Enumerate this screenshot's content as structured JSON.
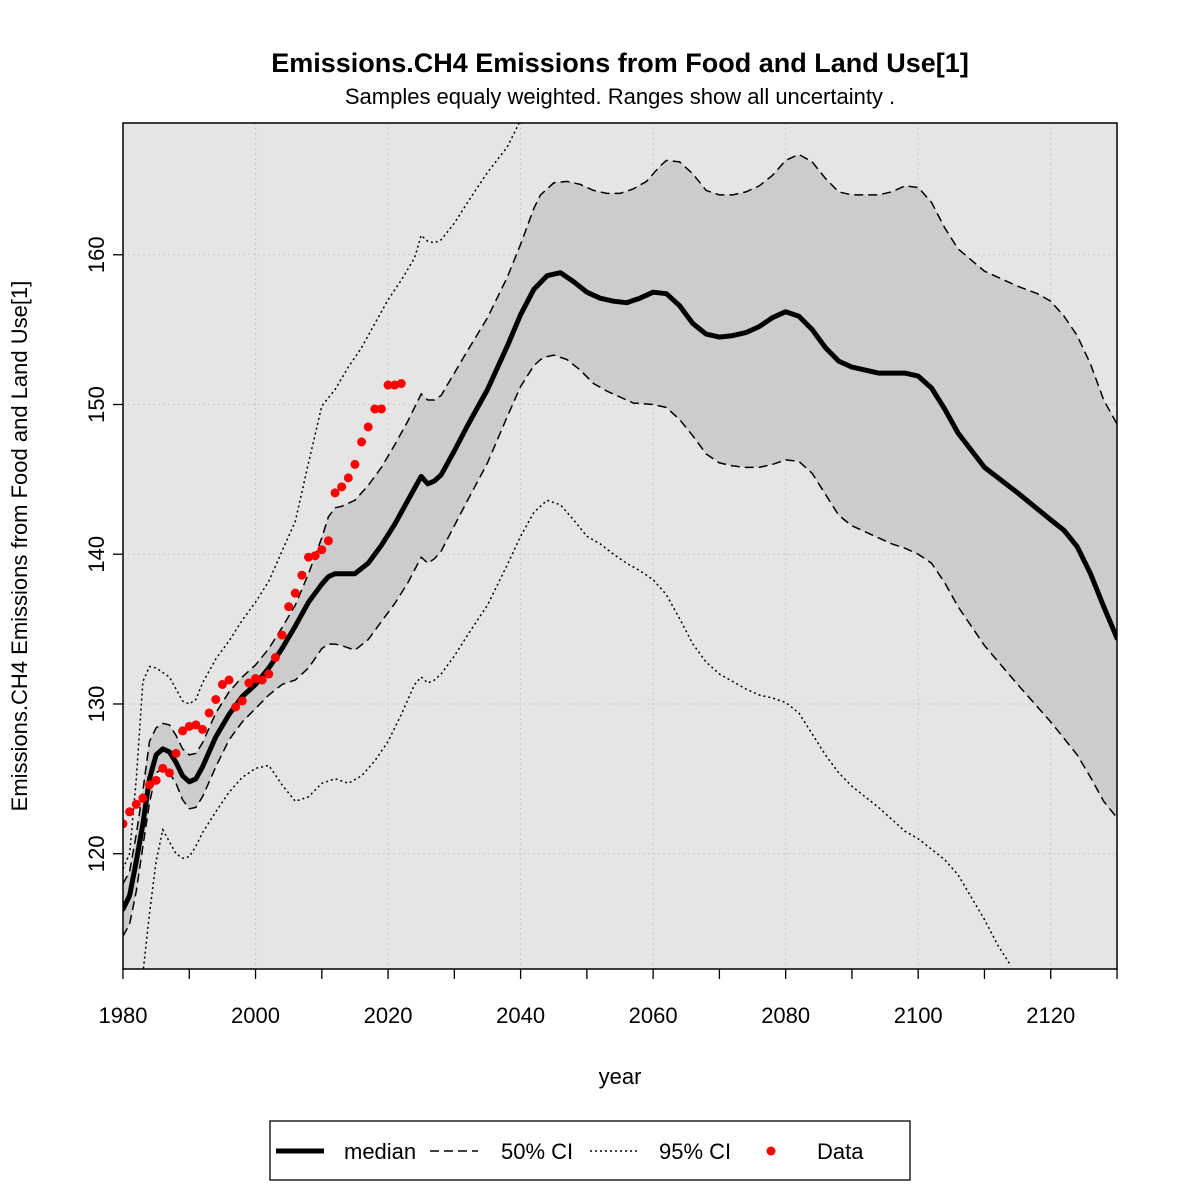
{
  "chart_data": {
    "type": "line",
    "title": "Emissions.CH4 Emissions from Food and Land Use[1]",
    "subtitle": "Samples equaly weighted. Ranges show  all uncertainty .",
    "xlabel": "year",
    "ylabel": "Emissions.CH4 Emissions from Food and Land Use[1]",
    "xlim": [
      1980,
      2130
    ],
    "ylim": [
      112.3,
      168.8
    ],
    "x_ticks": [
      1980,
      2000,
      2020,
      2040,
      2060,
      2080,
      2100,
      2120
    ],
    "y_ticks": [
      120,
      130,
      140,
      150,
      160
    ],
    "grid": true,
    "legend_position": "bottom",
    "legend": [
      {
        "name": "median",
        "style": "solid"
      },
      {
        "name": "50% CI",
        "style": "dashed"
      },
      {
        "name": "95% CI",
        "style": "dotted"
      },
      {
        "name": "Data",
        "style": "points"
      }
    ],
    "colors": {
      "median": "#000000",
      "data": "#ff0000",
      "band95": "#e5e5e5",
      "band50": "#cccccc"
    },
    "median": {
      "x": [
        1980,
        1981,
        1982,
        1983,
        1984,
        1985,
        1986,
        1987,
        1988,
        1989,
        1990,
        1991,
        1992,
        1994,
        1996,
        1998,
        2000,
        2002,
        2004,
        2006,
        2008,
        2010,
        2011,
        2012,
        2013,
        2015,
        2017,
        2019,
        2021,
        2023,
        2025,
        2026,
        2027,
        2028,
        2030,
        2032,
        2035,
        2038,
        2040,
        2042,
        2044,
        2046,
        2048,
        2050,
        2052,
        2054,
        2056,
        2058,
        2060,
        2062,
        2064,
        2066,
        2068,
        2070,
        2072,
        2074,
        2076,
        2078,
        2080,
        2082,
        2084,
        2086,
        2088,
        2090,
        2092,
        2094,
        2096,
        2098,
        2100,
        2102,
        2104,
        2106,
        2110,
        2115,
        2120,
        2122,
        2124,
        2126,
        2128,
        2130
      ],
      "y": [
        116.3,
        117.2,
        119.5,
        122.0,
        125.0,
        126.6,
        127.0,
        126.8,
        126.1,
        125.2,
        124.8,
        125.0,
        125.8,
        127.8,
        129.3,
        130.5,
        131.3,
        132.4,
        133.7,
        135.2,
        136.8,
        138.0,
        138.5,
        138.7,
        138.7,
        138.7,
        139.4,
        140.6,
        142.0,
        143.6,
        145.2,
        144.7,
        144.9,
        145.3,
        146.9,
        148.6,
        151.0,
        153.9,
        156.0,
        157.7,
        158.6,
        158.8,
        158.2,
        157.5,
        157.1,
        156.9,
        156.8,
        157.1,
        157.5,
        157.4,
        156.6,
        155.4,
        154.7,
        154.5,
        154.6,
        154.8,
        155.2,
        155.8,
        156.2,
        155.9,
        155.0,
        153.8,
        152.9,
        152.5,
        152.3,
        152.1,
        152.1,
        152.1,
        151.9,
        151.1,
        149.7,
        148.1,
        145.8,
        144.1,
        142.3,
        141.6,
        140.5,
        138.7,
        136.5,
        134.4
      ]
    },
    "ci50_upper": {
      "x": [
        1980,
        1981,
        1982,
        1983,
        1984,
        1985,
        1986,
        1987,
        1988,
        1989,
        1990,
        1991,
        1992,
        1994,
        1996,
        1998,
        2000,
        2002,
        2004,
        2006,
        2008,
        2010,
        2011,
        2012,
        2013,
        2015,
        2017,
        2019,
        2021,
        2023,
        2025,
        2026,
        2027,
        2028,
        2030,
        2032,
        2035,
        2038,
        2040,
        2042,
        2043,
        2045,
        2047,
        2049,
        2051,
        2053,
        2055,
        2057,
        2059,
        2060,
        2061,
        2062,
        2064,
        2066,
        2068,
        2070,
        2072,
        2074,
        2076,
        2078,
        2080,
        2082,
        2084,
        2086,
        2088,
        2090,
        2092,
        2094,
        2096,
        2098,
        2100,
        2102,
        2104,
        2106,
        2110,
        2115,
        2118,
        2120,
        2122,
        2124,
        2126,
        2128,
        2130
      ],
      "y": [
        118.0,
        118.8,
        121.3,
        124.2,
        127.5,
        128.4,
        128.7,
        128.6,
        127.9,
        127.0,
        126.6,
        126.7,
        127.4,
        129.4,
        130.8,
        131.8,
        132.6,
        133.7,
        135.1,
        136.6,
        138.7,
        141.1,
        142.5,
        143.1,
        143.2,
        143.6,
        144.6,
        145.8,
        147.3,
        148.9,
        150.7,
        150.3,
        150.3,
        150.6,
        152.1,
        153.6,
        155.8,
        158.5,
        160.7,
        163.1,
        164.0,
        164.8,
        164.9,
        164.7,
        164.3,
        164.1,
        164.1,
        164.4,
        164.9,
        165.4,
        165.9,
        166.3,
        166.2,
        165.4,
        164.3,
        164.0,
        164.0,
        164.2,
        164.6,
        165.3,
        166.3,
        166.7,
        166.2,
        165.1,
        164.2,
        164.0,
        164.0,
        164.0,
        164.2,
        164.6,
        164.5,
        163.5,
        161.8,
        160.4,
        158.9,
        157.9,
        157.4,
        156.9,
        155.9,
        154.6,
        152.7,
        150.3,
        148.7
      ]
    },
    "ci50_lower": {
      "x": [
        1980,
        1981,
        1982,
        1983,
        1984,
        1985,
        1986,
        1987,
        1988,
        1989,
        1990,
        1991,
        1992,
        1994,
        1996,
        1998,
        2000,
        2002,
        2004,
        2006,
        2008,
        2010,
        2011,
        2012,
        2013,
        2015,
        2017,
        2019,
        2021,
        2023,
        2025,
        2026,
        2027,
        2028,
        2030,
        2032,
        2035,
        2038,
        2040,
        2042,
        2043,
        2044,
        2045,
        2047,
        2049,
        2051,
        2053,
        2055,
        2057,
        2060,
        2062,
        2064,
        2066,
        2068,
        2070,
        2072,
        2074,
        2076,
        2078,
        2080,
        2082,
        2084,
        2086,
        2088,
        2090,
        2092,
        2094,
        2096,
        2098,
        2100,
        2102,
        2104,
        2106,
        2110,
        2115,
        2120,
        2122,
        2124,
        2126,
        2128,
        2130
      ],
      "y": [
        114.5,
        115.3,
        117.5,
        120.5,
        123.4,
        125.4,
        125.7,
        125.4,
        124.7,
        123.6,
        123.0,
        123.1,
        123.8,
        125.8,
        127.6,
        128.8,
        129.7,
        130.6,
        131.3,
        131.6,
        132.4,
        133.7,
        134.0,
        134.0,
        133.9,
        133.6,
        134.3,
        135.5,
        136.7,
        138.1,
        139.8,
        139.4,
        139.7,
        140.2,
        141.9,
        143.6,
        146.1,
        149.2,
        151.2,
        152.6,
        153.0,
        153.2,
        153.3,
        153.0,
        152.3,
        151.4,
        150.9,
        150.5,
        150.1,
        150.0,
        149.8,
        149.0,
        147.9,
        146.7,
        146.1,
        145.9,
        145.8,
        145.8,
        146.0,
        146.3,
        146.2,
        145.4,
        144.0,
        142.6,
        141.9,
        141.5,
        141.1,
        140.7,
        140.4,
        140.0,
        139.4,
        138.1,
        136.5,
        133.9,
        131.3,
        128.8,
        127.7,
        126.6,
        125.1,
        123.5,
        122.4
      ]
    },
    "ci95_upper": {
      "x": [
        1980,
        1981,
        1982,
        1983,
        1984,
        1985,
        1986,
        1987,
        1988,
        1989,
        1990,
        1991,
        1992,
        1994,
        1996,
        1998,
        2000,
        2002,
        2004,
        2006,
        2008,
        2010,
        2012,
        2014,
        2016,
        2018,
        2020,
        2022,
        2024,
        2025,
        2026,
        2027,
        2028,
        2030,
        2032,
        2035,
        2038,
        2040,
        2042
      ],
      "y": [
        119.0,
        120.0,
        125.0,
        131.5,
        132.5,
        132.4,
        132.1,
        131.8,
        131.0,
        130.2,
        130.0,
        130.3,
        131.4,
        133.0,
        134.2,
        135.6,
        136.8,
        138.2,
        140.2,
        142.2,
        146.1,
        149.9,
        151.0,
        152.5,
        153.8,
        155.4,
        157.0,
        158.3,
        159.8,
        161.3,
        160.9,
        160.8,
        161.0,
        162.1,
        163.5,
        165.5,
        167.2,
        169.0,
        171.0
      ]
    },
    "ci95_lower": {
      "x": [
        1983,
        1984,
        1985,
        1986,
        1987,
        1988,
        1989,
        1990,
        1991,
        1992,
        1994,
        1996,
        1998,
        2000,
        2002,
        2004,
        2006,
        2008,
        2010,
        2012,
        2014,
        2016,
        2018,
        2020,
        2022,
        2024,
        2025,
        2026,
        2027,
        2028,
        2030,
        2032,
        2035,
        2038,
        2040,
        2042,
        2044,
        2046,
        2048,
        2050,
        2052,
        2054,
        2056,
        2058,
        2060,
        2062,
        2064,
        2066,
        2068,
        2070,
        2072,
        2074,
        2076,
        2078,
        2080,
        2082,
        2084,
        2086,
        2088,
        2090,
        2092,
        2094,
        2096,
        2098,
        2100,
        2102,
        2104,
        2106,
        2108,
        2110,
        2112,
        2114
      ],
      "y": [
        112.0,
        116.0,
        119.5,
        121.6,
        120.8,
        120.0,
        119.7,
        119.8,
        120.5,
        121.4,
        122.8,
        124.1,
        125.1,
        125.7,
        125.9,
        124.6,
        123.5,
        123.8,
        124.7,
        125.0,
        124.7,
        125.2,
        126.2,
        127.5,
        129.3,
        131.3,
        131.8,
        131.4,
        131.6,
        132.0,
        133.2,
        134.6,
        136.6,
        139.3,
        141.2,
        142.8,
        143.6,
        143.3,
        142.3,
        141.2,
        140.7,
        140.0,
        139.4,
        138.9,
        138.3,
        137.3,
        135.7,
        134.0,
        132.8,
        132.0,
        131.5,
        131.0,
        130.6,
        130.4,
        130.1,
        129.4,
        128.0,
        126.6,
        125.4,
        124.5,
        123.8,
        123.1,
        122.3,
        121.5,
        121.0,
        120.3,
        119.6,
        118.6,
        117.1,
        115.6,
        113.9,
        112.5
      ]
    },
    "data_points": {
      "x": [
        1980,
        1981,
        1982,
        1983,
        1984,
        1985,
        1986,
        1987,
        1988,
        1989,
        1990,
        1991,
        1992,
        1993,
        1994,
        1995,
        1996,
        1997,
        1998,
        1999,
        2000,
        2001,
        2002,
        2003,
        2004,
        2005,
        2006,
        2007,
        2008,
        2009,
        2010,
        2011,
        2012,
        2013,
        2014,
        2015,
        2016,
        2017,
        2018,
        2019,
        2020,
        2021,
        2022
      ],
      "y": [
        122.0,
        122.8,
        123.3,
        123.7,
        124.6,
        124.9,
        125.7,
        125.4,
        126.7,
        128.2,
        128.5,
        128.6,
        128.3,
        129.4,
        130.3,
        131.3,
        131.6,
        129.8,
        130.2,
        131.4,
        131.7,
        131.6,
        132.0,
        133.1,
        134.6,
        136.5,
        137.4,
        138.6,
        139.8,
        139.9,
        140.3,
        140.9,
        144.1,
        144.5,
        145.1,
        146.0,
        147.5,
        148.5,
        149.7,
        149.7,
        151.3,
        151.3,
        151.4
      ]
    }
  }
}
